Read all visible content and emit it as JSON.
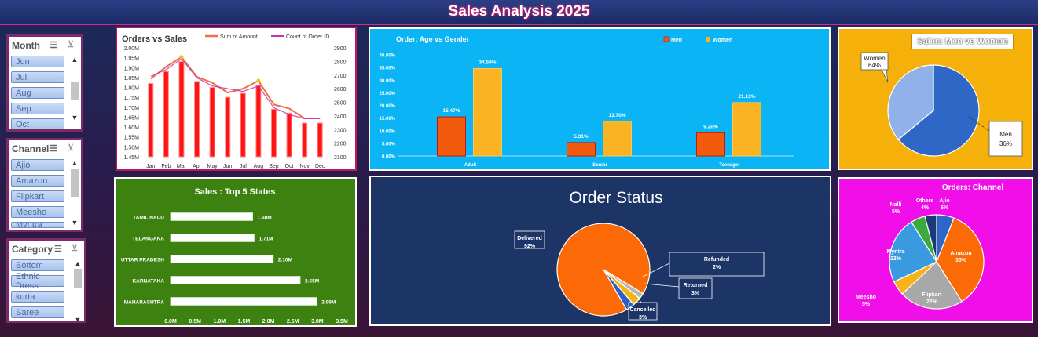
{
  "header": {
    "title": "Sales Analysis 2025"
  },
  "slicers": [
    {
      "title": "Month",
      "items": [
        "Jun",
        "Jul",
        "Aug",
        "Sep",
        "Oct"
      ]
    },
    {
      "title": "Channel",
      "items": [
        "Ajio",
        "Amazon",
        "Flipkart",
        "Meesho",
        "Myntra"
      ]
    },
    {
      "title": "Category",
      "items": [
        "Bottom",
        "Ethnic Dress",
        "kurta",
        "Saree"
      ]
    }
  ],
  "chart_data": [
    {
      "id": "orders_vs_sales",
      "type": "bar+line",
      "title": "Orders vs Sales",
      "categories": [
        "Jan",
        "Feb",
        "Mar",
        "Apr",
        "May",
        "Jun",
        "Jul",
        "Aug",
        "Sep",
        "Oct",
        "Nov",
        "Dec"
      ],
      "series": [
        {
          "name": "Sum of Amount",
          "axis": "left",
          "values": [
            1.82,
            1.88,
            1.93,
            1.83,
            1.8,
            1.75,
            1.77,
            1.81,
            1.69,
            1.67,
            1.62,
            1.62
          ]
        },
        {
          "name": "Count of Order ID",
          "axis": "right",
          "values": [
            2690,
            2740,
            2820,
            2680,
            2620,
            2600,
            2580,
            2620,
            2460,
            2410,
            2380,
            2380
          ]
        }
      ],
      "ylim_left": [
        1.45,
        2.0
      ],
      "yticks_left": [
        "1.45M",
        "1.50M",
        "1.55M",
        "1.60M",
        "1.65M",
        "1.70M",
        "1.75M",
        "1.80M",
        "1.85M",
        "1.90M",
        "1.95M",
        "2.00M"
      ],
      "ylim_right": [
        2100,
        2900
      ],
      "yticks_right": [
        "2100",
        "2200",
        "2300",
        "2400",
        "2500",
        "2600",
        "2700",
        "2800",
        "2900"
      ],
      "colors": {
        "bars": "#ff1414",
        "line1": "#f07040",
        "line2": "#cc30b0"
      }
    },
    {
      "id": "age_gender",
      "type": "bar",
      "title": "Order: Age vs Gender",
      "categories": [
        "Adult",
        "Senior",
        "Teenager"
      ],
      "series": [
        {
          "name": "Men",
          "values": [
            15.47,
            5.31,
            9.2
          ],
          "labels": [
            "15.47%",
            "5.31%",
            "9.20%"
          ]
        },
        {
          "name": "Women",
          "values": [
            34.59,
            13.7,
            21.13
          ],
          "labels": [
            "34.59%",
            "13.70%",
            "21.13%"
          ]
        }
      ],
      "ylim": [
        0,
        40
      ],
      "yticks": [
        "0.00%",
        "5.00%",
        "10.00%",
        "15.00%",
        "20.00%",
        "25.00%",
        "30.00%",
        "35.00%",
        "40.00%"
      ],
      "colors": {
        "Men": "#f25a0e",
        "Women": "#f9b323"
      }
    },
    {
      "id": "men_women",
      "type": "pie",
      "title": "Sales: Men vs Women",
      "slices": [
        {
          "name": "Women",
          "value": 64,
          "label": "64%"
        },
        {
          "name": "Men",
          "value": 36,
          "label": "36%"
        }
      ],
      "colors": {
        "Women": "#2e67c6",
        "Men": "#90b2e8"
      }
    },
    {
      "id": "top_states",
      "type": "bar",
      "orientation": "horizontal",
      "title": "Sales : Top 5 States",
      "categories": [
        "TAMIL NADU",
        "TELANGANA",
        "UTTAR PRADESH",
        "KARNATAKA",
        "MAHARASHTRA"
      ],
      "values": [
        1.68,
        1.71,
        2.1,
        2.65,
        2.99
      ],
      "labels": [
        "1.68M",
        "1.71M",
        "2.10M",
        "2.65M",
        "2.99M"
      ],
      "xlim": [
        0,
        3.5
      ],
      "xticks": [
        "0.0M",
        "0.5M",
        "1.0M",
        "1.5M",
        "2.0M",
        "2.5M",
        "3.0M",
        "3.5M"
      ]
    },
    {
      "id": "order_status",
      "type": "pie",
      "title": "Order Status",
      "slices": [
        {
          "name": "Delivered",
          "value": 92,
          "label": "92%"
        },
        {
          "name": "Refunded",
          "value": 2,
          "label": "2%"
        },
        {
          "name": "Returned",
          "value": 3,
          "label": "3%"
        },
        {
          "name": "Cancelled",
          "value": 3,
          "label": "3%"
        }
      ],
      "colors": {
        "Delivered": "#fb6a06",
        "Refunded": "#b7b7b7",
        "Returned": "#f6b41a",
        "Cancelled": "#2b5fc4"
      }
    },
    {
      "id": "orders_channel",
      "type": "pie",
      "title": "Orders: Channel",
      "slices": [
        {
          "name": "Ajio",
          "value": 6,
          "label": "6%"
        },
        {
          "name": "Amazon",
          "value": 35,
          "label": "35%"
        },
        {
          "name": "Flipkart",
          "value": 22,
          "label": "22%"
        },
        {
          "name": "Meesho",
          "value": 5,
          "label": "5%"
        },
        {
          "name": "Myntra",
          "value": 23,
          "label": "23%"
        },
        {
          "name": "Nalli",
          "value": 5,
          "label": "5%"
        },
        {
          "name": "Others",
          "value": 4,
          "label": "4%"
        }
      ],
      "colors": {
        "Ajio": "#2e67c6",
        "Amazon": "#fb6a06",
        "Flipkart": "#a8a8a8",
        "Meesho": "#f6b41a",
        "Myntra": "#3a9ae0",
        "Nalli": "#3caa3c",
        "Others": "#1c3a78"
      }
    }
  ]
}
